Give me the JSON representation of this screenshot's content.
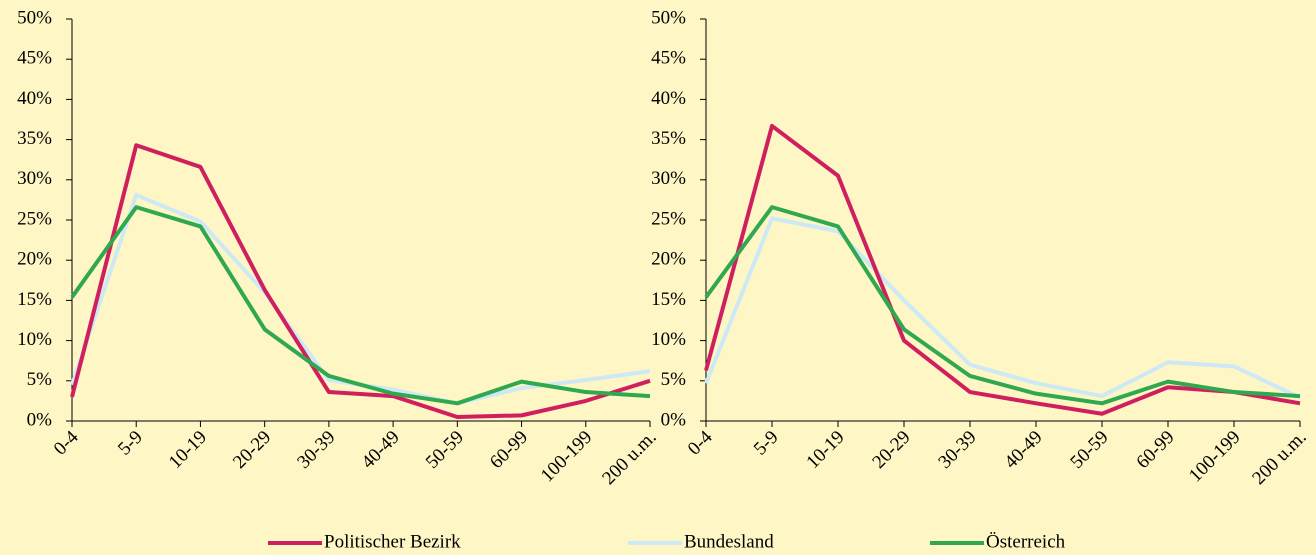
{
  "chart_data": [
    {
      "type": "line",
      "categories": [
        "0-4",
        "5-9",
        "10-19",
        "20-29",
        "30-39",
        "40-49",
        "50-59",
        "60-99",
        "100-199",
        "200 u.m."
      ],
      "series": [
        {
          "name": "Politischer Bezirk",
          "color": "#d01f5e",
          "values": [
            3.0,
            34.3,
            31.6,
            16.3,
            3.6,
            3.1,
            0.5,
            0.7,
            2.5,
            5.0
          ]
        },
        {
          "name": "Bundesland",
          "color": "#cde9f6",
          "values": [
            4.5,
            28.1,
            24.8,
            16.0,
            5.1,
            3.9,
            2.2,
            4.1,
            5.1,
            6.2
          ]
        },
        {
          "name": "Österreich",
          "color": "#2fa84f",
          "values": [
            15.4,
            26.6,
            24.2,
            11.4,
            5.6,
            3.4,
            2.2,
            4.9,
            3.6,
            3.1
          ]
        }
      ],
      "ylim": [
        0,
        50
      ],
      "yticks": [
        {
          "value": 0,
          "label": "0%"
        },
        {
          "value": 5,
          "label": "5%"
        },
        {
          "value": 10,
          "label": "10%"
        },
        {
          "value": 15,
          "label": "15%"
        },
        {
          "value": 20,
          "label": "20%"
        },
        {
          "value": 25,
          "label": "25%"
        },
        {
          "value": 30,
          "label": "30%"
        },
        {
          "value": 35,
          "label": "35%"
        },
        {
          "value": 40,
          "label": "40%"
        },
        {
          "value": 45,
          "label": "45%"
        },
        {
          "value": 50,
          "label": "50%"
        }
      ]
    },
    {
      "type": "line",
      "categories": [
        "0-4",
        "5-9",
        "10-19",
        "20-29",
        "30-39",
        "40-49",
        "50-59",
        "60-99",
        "100-199",
        "200 u.m."
      ],
      "series": [
        {
          "name": "Politischer Bezirk",
          "color": "#d01f5e",
          "values": [
            6.3,
            36.7,
            30.5,
            10.0,
            3.6,
            2.2,
            0.9,
            4.2,
            3.6,
            2.2
          ]
        },
        {
          "name": "Bundesland",
          "color": "#cde9f6",
          "values": [
            4.7,
            25.2,
            23.6,
            15.0,
            7.0,
            4.7,
            3.1,
            7.3,
            6.8,
            2.9
          ]
        },
        {
          "name": "Österreich",
          "color": "#2fa84f",
          "values": [
            15.4,
            26.6,
            24.2,
            11.4,
            5.6,
            3.4,
            2.2,
            4.9,
            3.6,
            3.1
          ]
        }
      ],
      "ylim": [
        0,
        50
      ],
      "yticks": [
        {
          "value": 0,
          "label": "0%"
        },
        {
          "value": 5,
          "label": "5%"
        },
        {
          "value": 10,
          "label": "10%"
        },
        {
          "value": 15,
          "label": "15%"
        },
        {
          "value": 20,
          "label": "20%"
        },
        {
          "value": 25,
          "label": "25%"
        },
        {
          "value": 30,
          "label": "30%"
        },
        {
          "value": 35,
          "label": "35%"
        },
        {
          "value": 40,
          "label": "40%"
        },
        {
          "value": 45,
          "label": "45%"
        },
        {
          "value": 50,
          "label": "50%"
        }
      ]
    }
  ]
}
